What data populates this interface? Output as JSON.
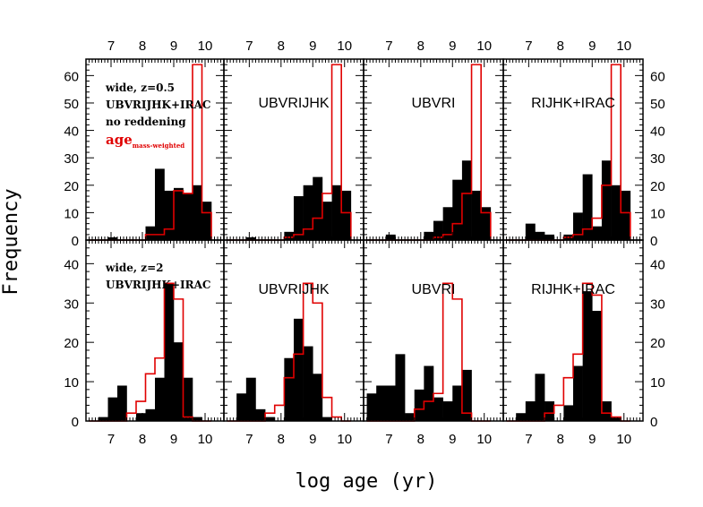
{
  "chart_data": {
    "type": "histogram",
    "xlabel": "log age (yr)",
    "ylabel": "Frequency",
    "xlim": [
      6.2,
      10.6
    ],
    "x_ticks": [
      7,
      8,
      9,
      10
    ],
    "bin_edges": [
      6.3,
      6.6,
      6.9,
      7.2,
      7.5,
      7.8,
      8.1,
      8.4,
      8.7,
      9.0,
      9.3,
      9.6,
      9.9,
      10.2
    ],
    "rows": [
      {
        "ylim": [
          0,
          66
        ],
        "y_ticks": [
          0,
          10,
          20,
          30,
          40,
          50,
          60
        ],
        "notes": [
          "wide, z=0.5",
          "UBVRIJHK+IRAC",
          "no reddening"
        ],
        "red_note": {
          "main": "age",
          "sub": "mass-weighted"
        },
        "panels": [
          {
            "label": "",
            "black": [
              0,
              0,
              1,
              0,
              0,
              0,
              5,
              26,
              18,
              19,
              17,
              20,
              14
            ],
            "red": [
              0,
              0,
              0,
              0,
              0,
              0,
              2,
              2,
              4,
              18,
              17,
              64,
              10
            ]
          },
          {
            "label": "UBVRIJHK",
            "black": [
              0,
              0,
              1,
              0,
              0,
              0,
              3,
              16,
              20,
              23,
              14,
              20,
              18
            ],
            "red": [
              0,
              0,
              0,
              0,
              0,
              0,
              1,
              2,
              4,
              8,
              17,
              64,
              10
            ]
          },
          {
            "label": "UBVRI",
            "black": [
              0,
              0,
              2,
              0,
              0,
              0,
              3,
              7,
              12,
              22,
              29,
              18,
              12
            ],
            "red": [
              0,
              0,
              0,
              0,
              0,
              0,
              0,
              1,
              2,
              6,
              17,
              64,
              10
            ]
          },
          {
            "label": "RIJHK+IRAC",
            "black": [
              0,
              0,
              6,
              3,
              2,
              0,
              2,
              10,
              24,
              5,
              29,
              20,
              18
            ],
            "red": [
              0,
              0,
              0,
              0,
              0,
              0,
              1,
              2,
              4,
              8,
              20,
              64,
              10
            ]
          }
        ]
      },
      {
        "ylim": [
          0,
          46
        ],
        "y_ticks": [
          0,
          10,
          20,
          30,
          40
        ],
        "notes": [
          "wide, z=2",
          "UBVRIJHK+IRAC"
        ],
        "panels": [
          {
            "label": "",
            "black": [
              0,
              1,
              6,
              9,
              0,
              2,
              3,
              11,
              35,
              20,
              11,
              1,
              0
            ],
            "red": [
              0,
              0,
              0,
              0,
              2,
              5,
              12,
              16,
              35,
              31,
              1,
              0,
              0
            ]
          },
          {
            "label": "UBVRIJHK",
            "black": [
              0,
              7,
              11,
              3,
              1,
              0,
              16,
              26,
              19,
              12,
              1,
              0,
              0
            ],
            "red": [
              0,
              0,
              0,
              0,
              2,
              4,
              11,
              17,
              35,
              30,
              6,
              1,
              0
            ]
          },
          {
            "label": "UBVRI",
            "black": [
              7,
              9,
              9,
              17,
              2,
              8,
              14,
              6,
              5,
              9,
              13,
              0,
              0
            ],
            "red": [
              0,
              0,
              0,
              0,
              0,
              3,
              5,
              7,
              35,
              31,
              2,
              0,
              0
            ]
          },
          {
            "label": "RIJHK+IRAC",
            "black": [
              0,
              2,
              5,
              12,
              5,
              0,
              4,
              14,
              33,
              28,
              5,
              1,
              0
            ],
            "red": [
              0,
              0,
              0,
              0,
              2,
              4,
              11,
              17,
              35,
              32,
              2,
              1,
              0
            ]
          }
        ]
      }
    ]
  }
}
